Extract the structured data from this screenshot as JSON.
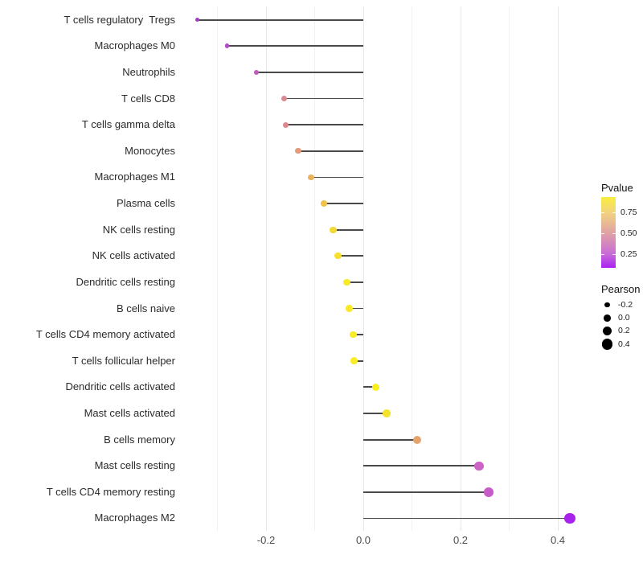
{
  "chart_data": {
    "type": "lollipop",
    "orientation": "horizontal",
    "title": "",
    "xlabel": "",
    "ylabel": "",
    "baseline": 0,
    "categories": [
      "T cells regulatory  Tregs",
      "Macrophages M0",
      "Neutrophils",
      "T cells CD8",
      "T cells gamma delta",
      "Monocytes",
      "Macrophages M1",
      "Plasma cells",
      "NK cells resting",
      "NK cells activated",
      "Dendritic cells resting",
      "B cells naive",
      "T cells CD4 memory activated",
      "T cells follicular helper",
      "Dendritic cells activated",
      "Mast cells activated",
      "B cells memory",
      "Mast cells resting",
      "T cells CD4 memory resting",
      "Macrophages M2"
    ],
    "series": [
      {
        "name": "Pearson",
        "values": [
          -0.342,
          -0.28,
          -0.22,
          -0.163,
          -0.16,
          -0.134,
          -0.107,
          -0.081,
          -0.062,
          -0.052,
          -0.034,
          -0.029,
          -0.021,
          -0.019,
          0.025,
          0.048,
          0.111,
          0.238,
          0.258,
          0.425
        ]
      }
    ],
    "point_colors": [
      "#A83BC6",
      "#B34AC9",
      "#C05CBC",
      "#DC8A92",
      "#DB8890",
      "#E49B79",
      "#EBB25E",
      "#EFC14B",
      "#F3D838",
      "#F5DF2F",
      "#F8EA28",
      "#F8EA28",
      "#F9ED25",
      "#F9ED25",
      "#F9EE1E",
      "#F5E22C",
      "#E5A46B",
      "#CC63C6",
      "#C75BC9",
      "#A823EC"
    ],
    "stick_color": "#4a4a4a",
    "background": "#ffffff",
    "grid": "vertical-only",
    "x_axis": {
      "tick_labels": [
        "-0.2",
        "0.0",
        "0.2",
        "0.4"
      ],
      "tick_values": [
        -0.2,
        0.0,
        0.2,
        0.4
      ],
      "minor_step": 0.1,
      "range": [
        -0.38,
        0.465
      ]
    },
    "legend_pvalue": {
      "title": "Pvalue",
      "position": "right",
      "tick_labels": [
        "0.75",
        "0.50",
        "0.25"
      ],
      "tick_values": [
        0.75,
        0.5,
        0.25
      ],
      "gradient_top_to_bottom": [
        "#F9ED3F",
        "#F2D37F",
        "#DFA2A5",
        "#C76BD7",
        "#A922F2"
      ]
    },
    "legend_pearson": {
      "title": "Pearson",
      "position": "right",
      "labels": [
        "-0.2",
        "0.0",
        "0.2",
        "0.4"
      ],
      "values": [
        -0.2,
        0.0,
        0.2,
        0.4
      ],
      "dot_color": "#000000"
    }
  }
}
